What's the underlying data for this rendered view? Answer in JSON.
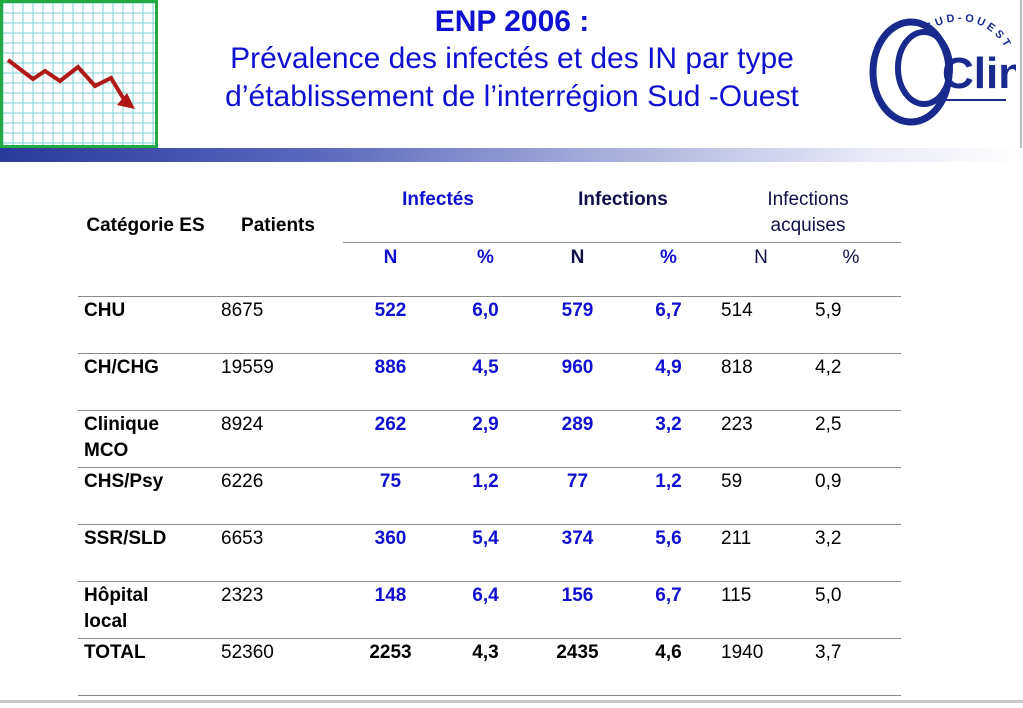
{
  "title": {
    "line1": "ENP 2006 :",
    "line2": "Prévalence des infectés et des IN par type",
    "line3": "d’établissement de l’interrégion Sud -Ouest"
  },
  "logo_right": {
    "text_main": "Clin",
    "text_arc": "SUD-OUEST"
  },
  "table": {
    "headers": {
      "categorie": "Catégorie ES",
      "patients": "Patients",
      "infectes": "Infectés",
      "infections": "Infections",
      "infections_acquises_l1": "Infections",
      "infections_acquises_l2": "acquises",
      "n": "N",
      "pct": "%"
    },
    "rows": [
      {
        "cat_l1": "CHU",
        "cat_l2": "",
        "patients": "8675",
        "inf_n": "522",
        "inf_pct": "6,0",
        "ion_n": "579",
        "ion_pct": "6,7",
        "acq_n": "514",
        "acq_pct": "5,9"
      },
      {
        "cat_l1": "CH/CHG",
        "cat_l2": "",
        "patients": "19559",
        "inf_n": "886",
        "inf_pct": "4,5",
        "ion_n": "960",
        "ion_pct": "4,9",
        "acq_n": "818",
        "acq_pct": "4,2"
      },
      {
        "cat_l1": "Clinique",
        "cat_l2": "MCO",
        "patients": "8924",
        "inf_n": "262",
        "inf_pct": "2,9",
        "ion_n": "289",
        "ion_pct": "3,2",
        "acq_n": "223",
        "acq_pct": "2,5"
      },
      {
        "cat_l1": "CHS/Psy",
        "cat_l2": "",
        "patients": "6226",
        "inf_n": "75",
        "inf_pct": "1,2",
        "ion_n": "77",
        "ion_pct": "1,2",
        "acq_n": "59",
        "acq_pct": "0,9"
      },
      {
        "cat_l1": "SSR/SLD",
        "cat_l2": "",
        "patients": "6653",
        "inf_n": "360",
        "inf_pct": "5,4",
        "ion_n": "374",
        "ion_pct": "5,6",
        "acq_n": "211",
        "acq_pct": "3,2"
      },
      {
        "cat_l1": "Hôpital",
        "cat_l2": "local",
        "patients": "2323",
        "inf_n": "148",
        "inf_pct": "6,4",
        "ion_n": "156",
        "ion_pct": "6,7",
        "acq_n": "115",
        "acq_pct": "5,0"
      },
      {
        "cat_l1": "TOTAL",
        "cat_l2": "",
        "patients": "52360",
        "inf_n": "2253",
        "inf_pct": "4,3",
        "ion_n": "2435",
        "ion_pct": "4,6",
        "acq_n": "1940",
        "acq_pct": "3,7",
        "total": true
      }
    ]
  },
  "colors": {
    "title_blue": "#1010d0",
    "grid_green": "#22aa44",
    "trend_red": "#b01818"
  }
}
